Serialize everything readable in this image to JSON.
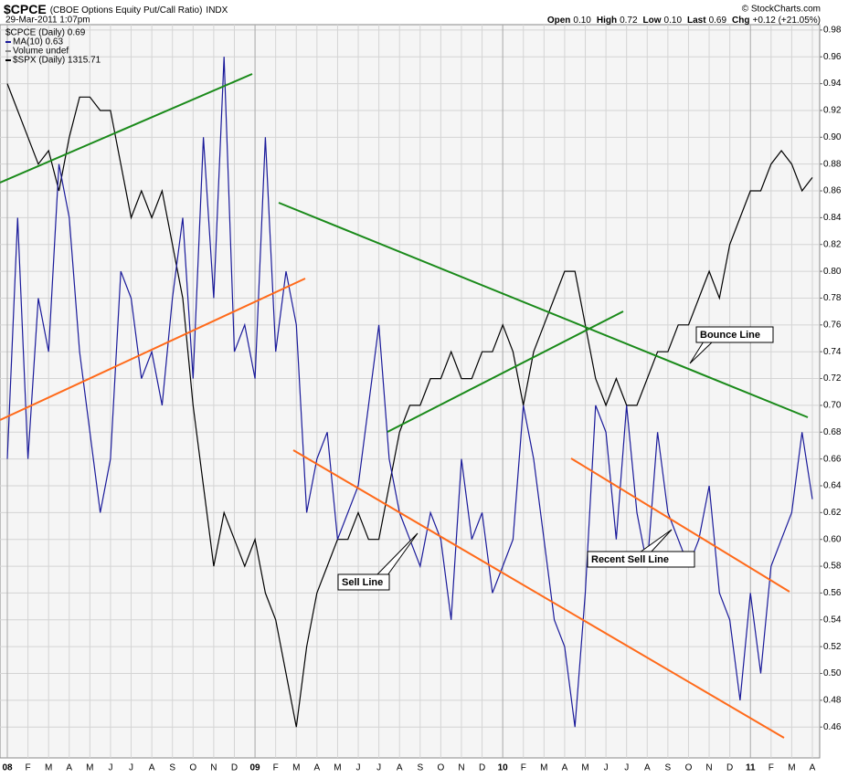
{
  "chart_data": {
    "type": "line",
    "title": "$CPCE",
    "subtitle": "(CBOE Options Equity Put/Call Ratio)",
    "exchange": "INDX",
    "date": "29-Mar-2011 1:07pm",
    "source": "© StockCharts.com",
    "quote": [
      {
        "label": "Open",
        "value": "0.10"
      },
      {
        "label": "High",
        "value": "0.72"
      },
      {
        "label": "Low",
        "value": "0.10"
      },
      {
        "label": "Last",
        "value": "0.69"
      },
      {
        "label": "Chg",
        "value": "+0.12 (+21.05%)"
      }
    ],
    "legend_extra": [
      "$CPCE (Daily) 0.69",
      "Volume undef"
    ],
    "annotations": [
      "Bounce Line",
      "Sell Line",
      "Recent Sell Line"
    ],
    "categories": [
      "08",
      null,
      "F",
      null,
      "M",
      null,
      "A",
      null,
      "M",
      null,
      "J",
      null,
      "J",
      null,
      "A",
      null,
      "S",
      null,
      "O",
      null,
      "N",
      null,
      "D",
      null,
      "09",
      null,
      "F",
      null,
      "M",
      null,
      "A",
      null,
      "M",
      null,
      "J",
      null,
      "J",
      null,
      "A",
      null,
      "S",
      null,
      "O",
      null,
      "N",
      null,
      "D",
      null,
      "10",
      null,
      "F",
      null,
      "M",
      null,
      "A",
      null,
      "M",
      null,
      "J",
      null,
      "J",
      null,
      "A",
      null,
      "S",
      null,
      "O",
      null,
      "N",
      null,
      "D",
      null,
      "11",
      null,
      "F",
      null,
      "M",
      null,
      "A"
    ],
    "series": [
      {
        "name": "MA(10) 0.63",
        "color": "#1a1a9a",
        "values": [
          0.66,
          0.84,
          0.66,
          0.78,
          0.74,
          0.88,
          0.84,
          0.74,
          0.68,
          0.62,
          0.66,
          0.8,
          0.78,
          0.72,
          0.74,
          0.7,
          0.78,
          0.84,
          0.72,
          0.9,
          0.78,
          0.96,
          0.74,
          0.76,
          0.72,
          0.9,
          0.74,
          0.8,
          0.76,
          0.62,
          0.66,
          0.68,
          0.6,
          0.62,
          0.64,
          0.7,
          0.76,
          0.66,
          0.62,
          0.6,
          0.58,
          0.62,
          0.6,
          0.54,
          0.66,
          0.6,
          0.62,
          0.56,
          0.58,
          0.6,
          0.7,
          0.66,
          0.6,
          0.54,
          0.52,
          0.46,
          0.56,
          0.7,
          0.68,
          0.6,
          0.7,
          0.62,
          0.58,
          0.68,
          0.62,
          0.6,
          0.58,
          0.6,
          0.64,
          0.56,
          0.54,
          0.48,
          0.56,
          0.5,
          0.58,
          0.6,
          0.62,
          0.68,
          0.63
        ]
      },
      {
        "name": "$SPX (Daily) 1315.71",
        "color": "#000000",
        "values": [
          0.94,
          0.92,
          0.9,
          0.88,
          0.89,
          0.86,
          0.9,
          0.93,
          0.93,
          0.92,
          0.92,
          0.88,
          0.84,
          0.86,
          0.84,
          0.86,
          0.82,
          0.78,
          0.7,
          0.64,
          0.58,
          0.62,
          0.6,
          0.58,
          0.6,
          0.56,
          0.54,
          0.5,
          0.46,
          0.52,
          0.56,
          0.58,
          0.6,
          0.6,
          0.62,
          0.6,
          0.6,
          0.64,
          0.68,
          0.7,
          0.7,
          0.72,
          0.72,
          0.74,
          0.72,
          0.72,
          0.74,
          0.74,
          0.76,
          0.74,
          0.7,
          0.74,
          0.76,
          0.78,
          0.8,
          0.8,
          0.76,
          0.72,
          0.7,
          0.72,
          0.7,
          0.7,
          0.72,
          0.74,
          0.74,
          0.76,
          0.76,
          0.78,
          0.8,
          0.78,
          0.82,
          0.84,
          0.86,
          0.86,
          0.88,
          0.89,
          0.88,
          0.86,
          0.87
        ]
      }
    ],
    "ylim": [
      0.437,
      0.984
    ],
    "yticks": [
      0.46,
      0.48,
      {
        "value": 0.5,
        "label": "0.50"
      },
      0.52,
      0.54,
      0.56,
      0.58,
      {
        "value": 0.6,
        "label": "0.60"
      },
      0.62,
      0.64,
      0.66,
      0.68,
      {
        "value": 0.7,
        "label": "0.70"
      },
      0.72,
      0.74,
      0.76,
      0.78,
      {
        "value": 0.8,
        "label": "0.80"
      },
      0.82,
      0.84,
      0.86,
      0.88,
      {
        "value": 0.9,
        "label": "0.90"
      },
      0.92,
      0.94,
      0.96,
      0.98
    ],
    "grid": true
  }
}
